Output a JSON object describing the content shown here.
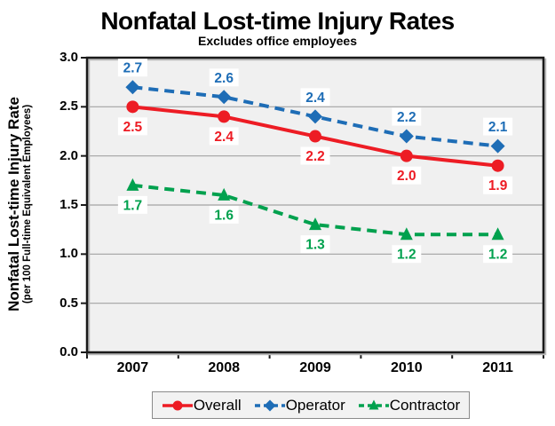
{
  "header": {
    "title": "Nonfatal Lost-time Injury Rates",
    "subtitle": "Excludes office employees"
  },
  "y_axis": {
    "label_line1": "Nonfatal Lost-time Injury Rate",
    "label_line2": "(per 100 Full-time Equivalent Employees)"
  },
  "chart_data": {
    "type": "line",
    "title": "Nonfatal Lost-time Injury Rates",
    "subtitle": "Excludes office employees",
    "ylabel": "Nonfatal Lost-time Injury Rate (per 100 Full-time Equivalent Employees)",
    "categories": [
      "2007",
      "2008",
      "2009",
      "2010",
      "2011"
    ],
    "series": [
      {
        "name": "Overall",
        "values": [
          2.5,
          2.4,
          2.2,
          2.0,
          1.9
        ],
        "color": "#ED1C24",
        "marker": "circle",
        "dash": "solid",
        "label_position": "below"
      },
      {
        "name": "Operator",
        "values": [
          2.7,
          2.6,
          2.4,
          2.2,
          2.1
        ],
        "color": "#1E6DB6",
        "marker": "diamond",
        "dash": "dashed",
        "label_position": "above"
      },
      {
        "name": "Contractor",
        "values": [
          1.7,
          1.6,
          1.3,
          1.2,
          1.2
        ],
        "color": "#00A14E",
        "marker": "triangle",
        "dash": "dashed",
        "label_position": "below"
      }
    ],
    "ylim": [
      0,
      3.0
    ],
    "yticks": [
      "0.0",
      "0.5",
      "1.0",
      "1.5",
      "2.0",
      "2.5",
      "3.0"
    ],
    "grid": "horizontal",
    "legend_position": "bottom",
    "data_labels": true,
    "plot_background": "#F0F0F0",
    "gridline_color": "#A3A3A3",
    "axis_color": "#1A1A1A",
    "label_box_color": "#FFFFFF"
  }
}
